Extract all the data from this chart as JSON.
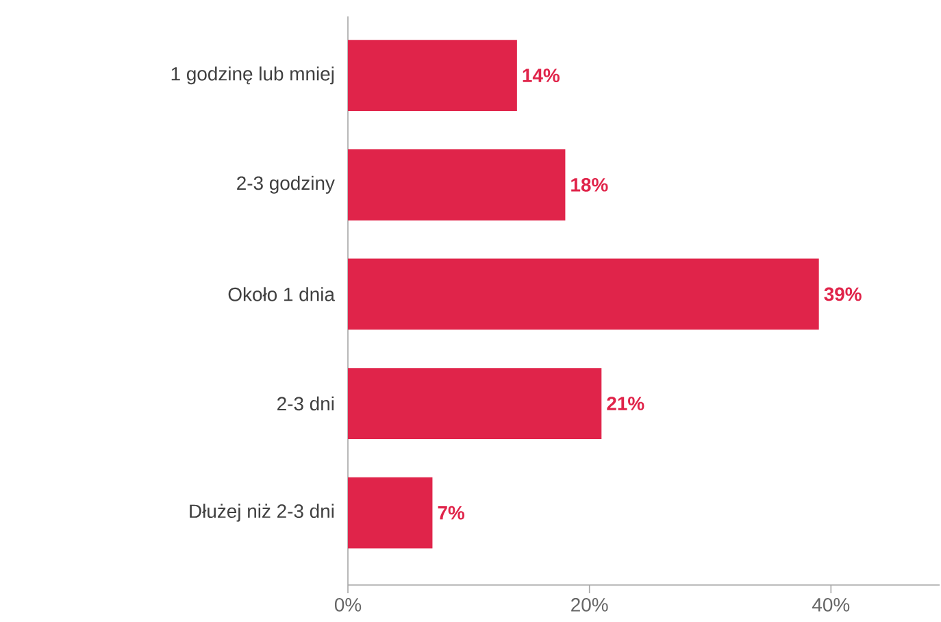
{
  "chart_data": {
    "type": "bar",
    "orientation": "horizontal",
    "categories": [
      "1 godzinę lub mniej",
      "2-3 godziny",
      "Około 1 dnia",
      "2-3 dni",
      "Dłużej niż 2-3 dni"
    ],
    "values": [
      14,
      18,
      39,
      21,
      7
    ],
    "value_labels": [
      "14%",
      "18%",
      "39%",
      "21%",
      "7%"
    ],
    "color": "#e0244a",
    "xlim": [
      0,
      49
    ],
    "xticks": [
      {
        "value": 0,
        "label": "0%"
      },
      {
        "value": 20,
        "label": "20%"
      },
      {
        "value": 40,
        "label": "40%"
      }
    ]
  }
}
